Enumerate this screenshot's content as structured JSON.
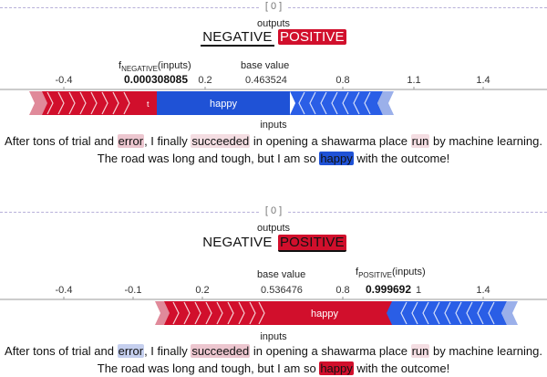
{
  "panels": [
    {
      "header": "[ 0 ]",
      "outputs_label": "outputs",
      "classes": [
        "NEGATIVE",
        "POSITIVE"
      ],
      "ticks": [
        "-0.4",
        "0.2",
        "0.8",
        "1.1",
        "1.4"
      ],
      "fx_label": "f",
      "fx_sub": "NEGATIVE",
      "fx_paren": "(inputs)",
      "fx_value": "0.000308085",
      "base_label": "base value",
      "base_value": "0.463524",
      "bar_label": "happy",
      "bar_small": "t",
      "inputs_label": "inputs",
      "line1": [
        {
          "t": "After tons of trial and ",
          "c": ""
        },
        {
          "t": "error",
          "c": "pos-mid"
        },
        {
          "t": ", I finally ",
          "c": ""
        },
        {
          "t": "succeeded",
          "c": "pos-weak"
        },
        {
          "t": " in opening a shawarma place ",
          "c": ""
        },
        {
          "t": "run",
          "c": "pos-weak"
        },
        {
          "t": " by machine learning.",
          "c": ""
        }
      ],
      "line2": [
        {
          "t": "The road was long and tough, but I am so ",
          "c": ""
        },
        {
          "t": "happy",
          "c": "neg-strong"
        },
        {
          "t": " with the outcome!",
          "c": ""
        }
      ]
    },
    {
      "header": "[ 0 ]",
      "outputs_label": "outputs",
      "classes": [
        "NEGATIVE",
        "POSITIVE"
      ],
      "ticks": [
        "-0.4",
        "-0.1",
        "0.2",
        "0.536476",
        "0.8",
        "1.4"
      ],
      "fx_label": "f",
      "fx_sub": "POSITIVE",
      "fx_paren": "(inputs)",
      "fx_value": "0.999692",
      "fx_after": "1",
      "base_label": "base value",
      "bar_label": "happy",
      "inputs_label": "inputs",
      "line1": [
        {
          "t": "After tons of trial and ",
          "c": ""
        },
        {
          "t": "error",
          "c": "neg-mid"
        },
        {
          "t": ", I finally ",
          "c": ""
        },
        {
          "t": "succeeded",
          "c": "pos-mid"
        },
        {
          "t": " in opening a shawarma place ",
          "c": ""
        },
        {
          "t": "run",
          "c": "pos-weak"
        },
        {
          "t": " by machine learning.",
          "c": ""
        }
      ],
      "line2": [
        {
          "t": "The road was long and tough, but I am so ",
          "c": ""
        },
        {
          "t": "happy",
          "c": "pos-strong"
        },
        {
          "t": " with the outcome!",
          "c": ""
        }
      ]
    }
  ],
  "colors": {
    "positive": "#d10f2c",
    "negative": "#1f52d6",
    "separator": "#b7b0d9"
  }
}
